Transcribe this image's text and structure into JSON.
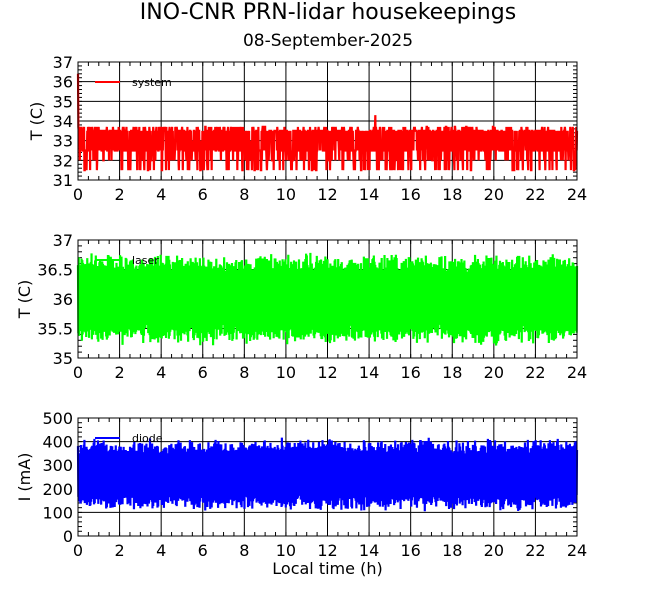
{
  "header": {
    "title": "INO-CNR PRN-lidar housekeepings",
    "date": "08-September-2025"
  },
  "chart_data": [
    {
      "type": "line",
      "ylabel": "T (C)",
      "xlim": [
        0,
        24
      ],
      "ylim": [
        31,
        37
      ],
      "x_ticks": [
        "0",
        "2",
        "4",
        "6",
        "8",
        "10",
        "12",
        "14",
        "16",
        "18",
        "20",
        "22",
        "24"
      ],
      "y_ticks": [
        "31",
        "32",
        "33",
        "34",
        "35",
        "36",
        "37"
      ],
      "grid": true,
      "legend_position": "top-left",
      "series": [
        {
          "name": "system",
          "color": "#ff0000",
          "baseline_range": [
            31.5,
            33.7
          ],
          "typical_value": 33,
          "peaks": [
            {
              "x": 0.0,
              "y": 36.4
            },
            {
              "x": 14.3,
              "y": 34.3
            }
          ]
        }
      ]
    },
    {
      "type": "line",
      "ylabel": "T (C)",
      "xlim": [
        0,
        24
      ],
      "ylim": [
        35,
        37
      ],
      "x_ticks": [
        "0",
        "2",
        "4",
        "6",
        "8",
        "10",
        "12",
        "14",
        "16",
        "18",
        "20",
        "22",
        "24"
      ],
      "y_ticks": [
        "35",
        "35.5",
        "36",
        "36.5",
        "37"
      ],
      "grid": true,
      "legend_position": "top-left",
      "series": [
        {
          "name": "laser",
          "color": "#00ff00",
          "range": [
            35.2,
            36.8
          ],
          "typical_value": 36
        }
      ]
    },
    {
      "type": "line",
      "xlabel": "Local time (h)",
      "ylabel": "I (mA)",
      "xlim": [
        0,
        24
      ],
      "ylim": [
        0,
        500
      ],
      "x_ticks": [
        "0",
        "2",
        "4",
        "6",
        "8",
        "10",
        "12",
        "14",
        "16",
        "18",
        "20",
        "22",
        "24"
      ],
      "y_ticks": [
        "0",
        "100",
        "200",
        "300",
        "400",
        "500"
      ],
      "grid": true,
      "legend_position": "top-left",
      "series": [
        {
          "name": "diode",
          "color": "#0000ff",
          "range": [
            105,
            420
          ],
          "typical_value": 260
        }
      ]
    }
  ]
}
